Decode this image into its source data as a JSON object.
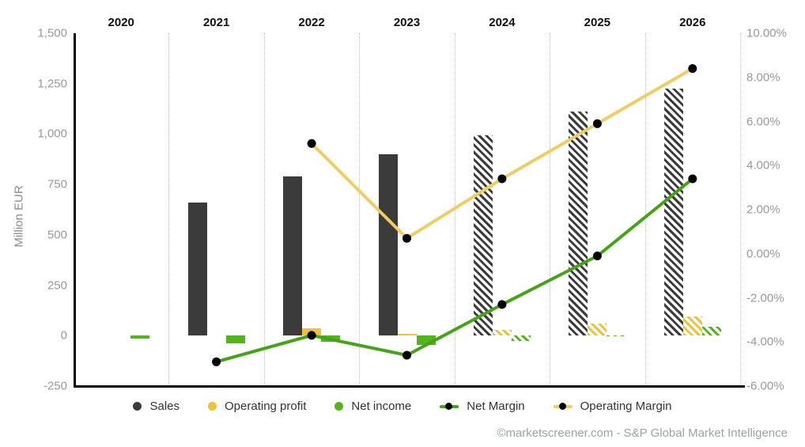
{
  "chart_data": {
    "type": "bar",
    "subtype": "combo-bar-line-dual-axis",
    "title": "",
    "categories": [
      "2020",
      "2021",
      "2022",
      "2023",
      "2024",
      "2025",
      "2026"
    ],
    "left_axis": {
      "title": "Million EUR",
      "min": -250,
      "max": 1500,
      "ticks": [
        "1,500",
        "1,250",
        "1,000",
        "750",
        "500",
        "250",
        "0",
        "-250"
      ]
    },
    "right_axis": {
      "min": -6,
      "max": 10,
      "ticks": [
        "10.00%",
        "8.00%",
        "6.00%",
        "4.00%",
        "2.00%",
        "0.00%",
        "-2.00%",
        "-4.00%",
        "-6.00%"
      ]
    },
    "series": [
      {
        "name": "Sales",
        "type": "bar",
        "axis": "left",
        "color": "#3b3b3b",
        "values": [
          null,
          660,
          790,
          900,
          995,
          1110,
          1225
        ]
      },
      {
        "name": "Operating profit",
        "type": "bar",
        "axis": "left",
        "color": "#f0c139",
        "values": [
          null,
          null,
          35,
          8,
          30,
          60,
          95
        ]
      },
      {
        "name": "Net income",
        "type": "bar",
        "axis": "left",
        "color": "#53b41e",
        "values": [
          -15,
          -40,
          -30,
          -45,
          -25,
          -2,
          45
        ]
      },
      {
        "name": "Net Margin",
        "type": "line",
        "axis": "right",
        "color": "#45a317",
        "values": [
          null,
          -4.9,
          -3.7,
          -4.6,
          -2.3,
          -0.1,
          3.4
        ]
      },
      {
        "name": "Operating Margin",
        "type": "line",
        "axis": "right",
        "color": "#f0cd62",
        "values": [
          null,
          null,
          5.0,
          0.7,
          3.4,
          5.9,
          8.4
        ]
      }
    ],
    "estimates_from_category": "2024",
    "marker_color": "#000000",
    "grid": "vertical-dotted",
    "legend_position": "bottom"
  },
  "footer": {
    "credit": "©marketscreener.com - S&P Global Market Intelligence"
  }
}
